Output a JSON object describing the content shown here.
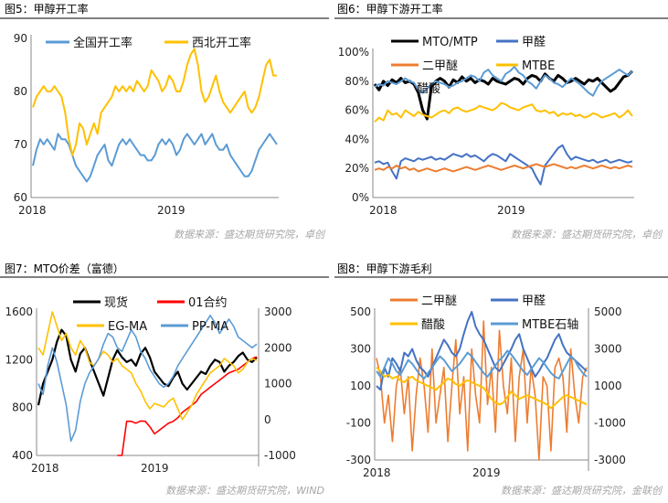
{
  "source_labels": [
    "数据来源：盛达期货研究院，卓创",
    "数据来源：盛达期货研究院，卓创",
    "数据来源：盛达期货研究院，WIND",
    "数据来源：盛达期货研究院，金联创"
  ],
  "colors": {
    "blue": "#5b9bd5",
    "gold": "#ffc000",
    "black": "#000000",
    "orange": "#ed7d31",
    "navy": "#4472c4",
    "red": "#ff0000",
    "brown": "#7f6000",
    "source_text": "#a6a6a6",
    "header_rule": "#000000"
  },
  "chart_data": [
    {
      "panel_title": "图5：甲醇开工率",
      "type": "line",
      "x_ticks": [
        "2018",
        "2019"
      ],
      "y_ticks": [
        "60",
        "70",
        "80",
        "90"
      ],
      "ylim": [
        60,
        90
      ],
      "legend_position": "top",
      "grid": false,
      "series": [
        {
          "name": "全国开工率",
          "color_key": "blue",
          "values": [
            66,
            69,
            71,
            70,
            71,
            70,
            69,
            72,
            71,
            71,
            70,
            68,
            66,
            65,
            64,
            63,
            64,
            66,
            68,
            69,
            70,
            67,
            66,
            68,
            70,
            71,
            70,
            71,
            70,
            69,
            68,
            68,
            67,
            67,
            68,
            70,
            71,
            70,
            71,
            70,
            68,
            69,
            71,
            72,
            71,
            70,
            71,
            72,
            70,
            71,
            72,
            70,
            69,
            69,
            70,
            68,
            67,
            66,
            65,
            64,
            64,
            65,
            67,
            69,
            70,
            71,
            72,
            71,
            70
          ]
        },
        {
          "name": "西北开工率",
          "color_key": "gold",
          "values": [
            77,
            79,
            80,
            81,
            80,
            80,
            81,
            80,
            79,
            76,
            71,
            68,
            70,
            74,
            73,
            70,
            72,
            74,
            72,
            76,
            77,
            78,
            79,
            81,
            80,
            81,
            80,
            81,
            80,
            82,
            81,
            80,
            81,
            84,
            83,
            82,
            80,
            81,
            83,
            82,
            80,
            80,
            82,
            85,
            87,
            88,
            85,
            80,
            78,
            79,
            81,
            83,
            80,
            78,
            77,
            76,
            77,
            78,
            79,
            80,
            77,
            76,
            77,
            79,
            82,
            85,
            86,
            83,
            83
          ]
        }
      ]
    },
    {
      "panel_title": "图6：甲醇下游开工率",
      "type": "line",
      "x_ticks": [
        "2018",
        "2019"
      ],
      "y_ticks": [
        "0%",
        "20%",
        "40%",
        "60%",
        "80%",
        "100%"
      ],
      "ylim": [
        0,
        100
      ],
      "legend_position": "top",
      "grid": false,
      "series": [
        {
          "name": "MTO/MTP",
          "color_key": "black",
          "values": [
            78,
            74,
            80,
            77,
            81,
            79,
            82,
            79,
            80,
            78,
            72,
            60,
            54,
            76,
            80,
            82,
            80,
            76,
            81,
            79,
            83,
            80,
            82,
            79,
            81,
            80,
            78,
            82,
            80,
            79,
            78,
            80,
            82,
            81,
            78,
            82,
            84,
            83,
            80,
            85,
            82,
            80,
            84,
            82,
            79,
            80,
            82,
            80,
            78,
            81,
            80,
            82,
            79,
            76,
            73,
            75,
            79,
            83,
            84,
            87
          ]
        },
        {
          "name": "甲醛",
          "color_key": "navy",
          "values": [
            24,
            25,
            23,
            24,
            18,
            13,
            25,
            27,
            26,
            25,
            27,
            26,
            27,
            28,
            26,
            27,
            26,
            28,
            30,
            29,
            28,
            30,
            28,
            29,
            27,
            25,
            28,
            30,
            29,
            27,
            25,
            30,
            28,
            26,
            24,
            22,
            20,
            14,
            9,
            22,
            26,
            30,
            34,
            36,
            30,
            26,
            28,
            27,
            26,
            25,
            26,
            24,
            25,
            26,
            24,
            25,
            26,
            25,
            24,
            25
          ]
        },
        {
          "name": "二甲醚",
          "color_key": "orange",
          "values": [
            19,
            20,
            19,
            21,
            20,
            22,
            20,
            21,
            19,
            20,
            18,
            19,
            20,
            19,
            18,
            19,
            20,
            19,
            18,
            19,
            20,
            21,
            20,
            19,
            20,
            21,
            22,
            21,
            20,
            19,
            20,
            21,
            22,
            21,
            20,
            21,
            22,
            23,
            22,
            21,
            22,
            23,
            22,
            21,
            20,
            21,
            20,
            21,
            22,
            21,
            20,
            21,
            22,
            21,
            20,
            21,
            20,
            21,
            22,
            21
          ]
        },
        {
          "name": "MTBE",
          "color_key": "gold",
          "values": [
            52,
            55,
            53,
            60,
            57,
            58,
            55,
            60,
            58,
            56,
            59,
            57,
            56,
            55,
            57,
            59,
            60,
            58,
            61,
            62,
            60,
            59,
            60,
            61,
            63,
            62,
            61,
            60,
            62,
            65,
            64,
            62,
            61,
            60,
            62,
            63,
            64,
            60,
            59,
            60,
            58,
            59,
            56,
            58,
            57,
            58,
            56,
            57,
            55,
            56,
            58,
            57,
            55,
            56,
            57,
            58,
            55,
            57,
            60,
            56
          ]
        },
        {
          "name": "醋酸",
          "color_key": "blue",
          "values": [
            76,
            78,
            77,
            80,
            79,
            78,
            80,
            82,
            80,
            79,
            74,
            72,
            75,
            78,
            80,
            79,
            78,
            76,
            77,
            79,
            80,
            82,
            84,
            83,
            80,
            86,
            88,
            84,
            82,
            80,
            85,
            87,
            90,
            86,
            84,
            80,
            78,
            75,
            80,
            84,
            82,
            79,
            78,
            76,
            79,
            82,
            80,
            78,
            75,
            72,
            70,
            76,
            80,
            82,
            84,
            86,
            88,
            86,
            84,
            87
          ]
        }
      ]
    },
    {
      "panel_title": "图7：MTO价差（富德）",
      "type": "line",
      "x_ticks": [
        "2018",
        "2019"
      ],
      "y_ticks_left": [
        "400",
        "800",
        "1200",
        "1600"
      ],
      "y_ticks_right": [
        "-1000",
        "0",
        "1000",
        "2000",
        "3000"
      ],
      "ylim_left": [
        400,
        1600
      ],
      "ylim_right": [
        -1000,
        3000
      ],
      "legend_position": "top",
      "grid": false,
      "series": [
        {
          "name": "现货",
          "color_key": "black",
          "axis": "left",
          "values": [
            820,
            1000,
            1100,
            1200,
            1350,
            1450,
            1400,
            1200,
            1100,
            1250,
            1300,
            1200,
            1100,
            1000,
            900,
            1050,
            1200,
            1280,
            1220,
            1180,
            1200,
            1150,
            1250,
            1300,
            1220,
            1100,
            1050,
            1000,
            980,
            1050,
            1100,
            1000,
            950,
            1000,
            1050,
            1100,
            1080,
            1150,
            1200,
            1180,
            1100,
            1150,
            1180,
            1230,
            1260,
            1200,
            1180,
            1220
          ]
        },
        {
          "name": "01合约",
          "color_key": "red",
          "axis": "right",
          "x_start": 17,
          "values": [
            -1200,
            -1000,
            -50,
            -50,
            -100,
            -40,
            -50,
            -200,
            -400,
            -300,
            -200,
            -100,
            -50,
            50,
            200,
            300,
            400,
            500,
            700,
            800,
            900,
            1000,
            1100,
            1200,
            1300,
            1350,
            1400,
            1500,
            1600,
            1700,
            1750
          ]
        },
        {
          "name": "EG-MA",
          "color_key": "gold",
          "axis": "right",
          "values": [
            2000,
            1800,
            2400,
            3000,
            2600,
            2200,
            2400,
            2000,
            1800,
            2200,
            2000,
            1600,
            1500,
            1700,
            1900,
            1800,
            1600,
            1700,
            1500,
            1400,
            1300,
            1000,
            800,
            500,
            300,
            450,
            400,
            350,
            500,
            600,
            300,
            0,
            200,
            400,
            700,
            900,
            1100,
            1300,
            1400,
            1500,
            1700,
            1600,
            1500,
            1300,
            1400,
            1600,
            1700,
            1650
          ]
        },
        {
          "name": "PP-MA",
          "color_key": "blue",
          "axis": "right",
          "values": [
            1000,
            700,
            1500,
            2000,
            1600,
            1000,
            400,
            -600,
            -300,
            500,
            1000,
            1300,
            1500,
            1700,
            2100,
            2400,
            2300,
            2000,
            1900,
            2200,
            2500,
            2300,
            1900,
            1700,
            1400,
            1200,
            1000,
            900,
            1000,
            1200,
            1500,
            1700,
            1900,
            2100,
            2300,
            2500,
            2700,
            2900,
            2700,
            2400,
            2600,
            2800,
            2600,
            2300,
            2200,
            2100,
            2000,
            2100
          ]
        }
      ]
    },
    {
      "panel_title": "图8：甲醇下游毛利",
      "type": "line",
      "x_ticks": [
        "2018",
        "2019"
      ],
      "y_ticks_left": [
        "-300",
        "-100",
        "100",
        "300",
        "500"
      ],
      "y_ticks_right": [
        "-3000",
        "-1000",
        "1000",
        "3000",
        "5000"
      ],
      "ylim_left": [
        -300,
        500
      ],
      "ylim_right": [
        -3000,
        5000
      ],
      "legend_position": "top",
      "grid": false,
      "series": [
        {
          "name": "二甲醚",
          "color_key": "orange",
          "axis": "left",
          "values": [
            250,
            150,
            -100,
            50,
            -200,
            100,
            200,
            -50,
            150,
            -250,
            50,
            250,
            100,
            -150,
            300,
            -100,
            50,
            200,
            -200,
            100,
            350,
            -50,
            150,
            -250,
            300,
            50,
            -100,
            450,
            0,
            200,
            -150,
            400,
            100,
            -50,
            250,
            -200,
            150,
            300,
            -100,
            200,
            50,
            -300,
            150,
            100,
            -250,
            200,
            250,
            150,
            -150,
            300,
            50,
            -100,
            150,
            200
          ]
        },
        {
          "name": "甲醛",
          "color_key": "navy",
          "axis": "left",
          "values": [
            100,
            80,
            200,
            150,
            250,
            220,
            180,
            280,
            260,
            300,
            240,
            200,
            180,
            150,
            200,
            250,
            300,
            350,
            320,
            280,
            260,
            300,
            380,
            450,
            500,
            420,
            380,
            350,
            300,
            250,
            200,
            180,
            220,
            260,
            300,
            350,
            380,
            300,
            250,
            200,
            150,
            180,
            220,
            250,
            300,
            350,
            380,
            320,
            280,
            260,
            240,
            220,
            200,
            180
          ]
        },
        {
          "name": "醋酸",
          "color_key": "gold",
          "axis": "right",
          "values": [
            2000,
            1800,
            1500,
            1600,
            1400,
            1500,
            1300,
            1200,
            1400,
            1500,
            1300,
            1200,
            1100,
            1000,
            900,
            800,
            1000,
            1200,
            1400,
            1300,
            1100,
            1000,
            1200,
            1300,
            1200,
            1100,
            1000,
            900,
            600,
            300,
            100,
            0,
            100,
            400,
            700,
            500,
            300,
            400,
            500,
            400,
            300,
            200,
            100,
            0,
            -200,
            0,
            200,
            400,
            500,
            400,
            300,
            200,
            100,
            0
          ]
        },
        {
          "name": "MTBE石轴",
          "color_key": "blue",
          "axis": "right",
          "values": [
            1800,
            1500,
            2000,
            2500,
            2200,
            1800,
            1600,
            2000,
            2400,
            2200,
            1900,
            1600,
            1400,
            1700,
            2000,
            2300,
            2600,
            2400,
            2100,
            1800,
            2000,
            2200,
            2500,
            2800,
            2600,
            2300,
            2000,
            1700,
            1500,
            1800,
            2100,
            2400,
            2600,
            2900,
            2700,
            2400,
            2100,
            1800,
            1600,
            1900,
            2200,
            2500,
            2300,
            2000,
            1700,
            1500,
            1400,
            1800,
            2200,
            2600,
            2400,
            2000,
            1700,
            1500
          ]
        }
      ]
    }
  ]
}
